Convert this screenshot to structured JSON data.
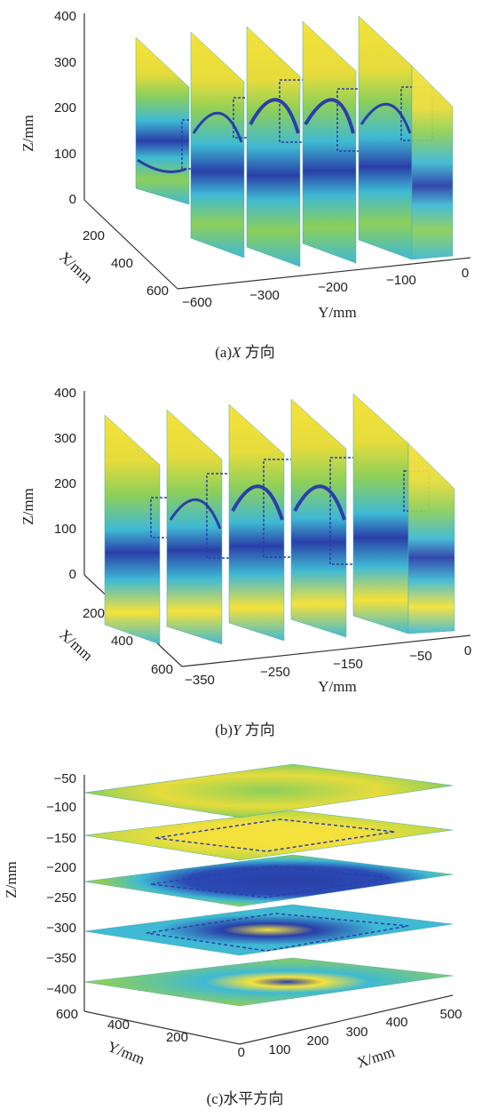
{
  "chart_data": [
    {
      "type": "heatmap",
      "caption_prefix": "(a)",
      "caption_var": "X",
      "caption_text": " 方向",
      "z_label": "Z/mm",
      "x_label": "X/mm",
      "y_label": "Y/mm",
      "z_ticks": [
        "400",
        "300",
        "200",
        "100",
        "0"
      ],
      "x_ticks": [
        "200",
        "400",
        "600"
      ],
      "y_ticks": [
        "−600",
        "−300",
        "−200",
        "−100",
        "0"
      ],
      "slices": 5,
      "colors": {
        "yellow": "#f5e23a",
        "green": "#8ccf5a",
        "cyan": "#3fb9d4",
        "blue": "#2a3fa8"
      }
    },
    {
      "type": "heatmap",
      "caption_prefix": "(b)",
      "caption_var": "Y",
      "caption_text": " 方向",
      "z_label": "Z/mm",
      "x_label": "X/mm",
      "y_label": "Y/mm",
      "z_ticks": [
        "400",
        "300",
        "200",
        "100",
        "0"
      ],
      "x_ticks": [
        "200",
        "400",
        "600"
      ],
      "y_ticks": [
        "−350",
        "−250",
        "−150",
        "−50",
        "0"
      ],
      "slices": 5
    },
    {
      "type": "heatmap",
      "caption_prefix": "(c)",
      "caption_var": "",
      "caption_text": "水平方向",
      "z_label": "Z/mm",
      "x_label": "X/mm",
      "y_label": "Y/mm",
      "z_ticks": [
        "−50",
        "−100",
        "−150",
        "−200",
        "−250",
        "−300",
        "−350",
        "−400"
      ],
      "y_ticks": [
        "600",
        "400",
        "200",
        "0"
      ],
      "x_ticks": [
        "100",
        "200",
        "300",
        "400",
        "500"
      ],
      "slices": 5
    }
  ]
}
